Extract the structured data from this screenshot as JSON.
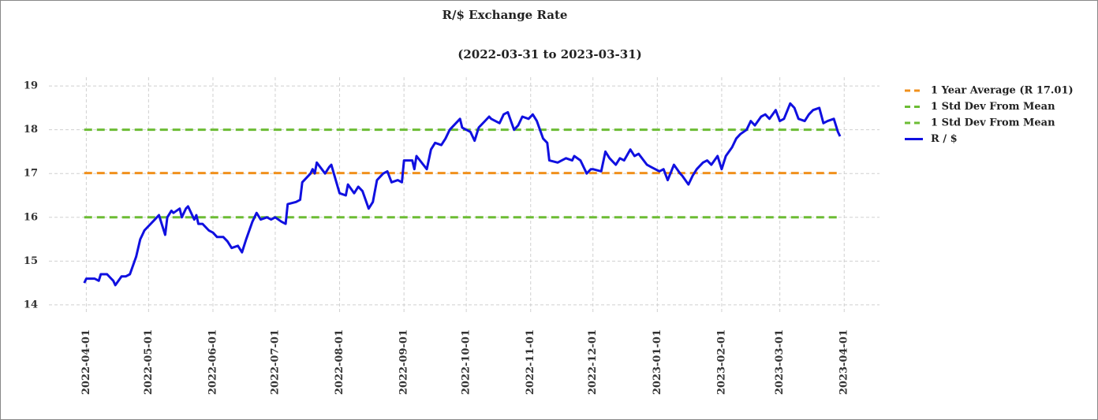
{
  "chart_data": {
    "type": "line",
    "title": "R/$  Exchange Rate",
    "subtitle": "(2022-03-31 to 2023-03-31)",
    "x": [
      "2022-03-31",
      "2022-04-01",
      "2022-04-05",
      "2022-04-07",
      "2022-04-08",
      "2022-04-11",
      "2022-04-13",
      "2022-04-14",
      "2022-04-15",
      "2022-04-18",
      "2022-04-20",
      "2022-04-22",
      "2022-04-25",
      "2022-04-26",
      "2022-04-27",
      "2022-04-28",
      "2022-04-29",
      "2022-05-02",
      "2022-05-04",
      "2022-05-06",
      "2022-05-09",
      "2022-05-10",
      "2022-05-12",
      "2022-05-13",
      "2022-05-16",
      "2022-05-17",
      "2022-05-19",
      "2022-05-20",
      "2022-05-23",
      "2022-05-24",
      "2022-05-25",
      "2022-05-27",
      "2022-05-30",
      "2022-06-01",
      "2022-06-03",
      "2022-06-06",
      "2022-06-08",
      "2022-06-10",
      "2022-06-13",
      "2022-06-15",
      "2022-06-17",
      "2022-06-20",
      "2022-06-22",
      "2022-06-24",
      "2022-06-27",
      "2022-06-29",
      "2022-07-01",
      "2022-07-04",
      "2022-07-06",
      "2022-07-07",
      "2022-07-11",
      "2022-07-13",
      "2022-07-14",
      "2022-07-18",
      "2022-07-19",
      "2022-07-20",
      "2022-07-21",
      "2022-07-25",
      "2022-07-27",
      "2022-07-28",
      "2022-08-01",
      "2022-08-04",
      "2022-08-05",
      "2022-08-08",
      "2022-08-10",
      "2022-08-12",
      "2022-08-15",
      "2022-08-17",
      "2022-08-19",
      "2022-08-22",
      "2022-08-24",
      "2022-08-26",
      "2022-08-29",
      "2022-08-31",
      "2022-09-01",
      "2022-09-05",
      "2022-09-06",
      "2022-09-07",
      "2022-09-12",
      "2022-09-14",
      "2022-09-16",
      "2022-09-19",
      "2022-09-21",
      "2022-09-23",
      "2022-09-26",
      "2022-09-28",
      "2022-09-29",
      "2022-10-03",
      "2022-10-05",
      "2022-10-07",
      "2022-10-10",
      "2022-10-12",
      "2022-10-13",
      "2022-10-17",
      "2022-10-19",
      "2022-10-21",
      "2022-10-24",
      "2022-10-26",
      "2022-10-28",
      "2022-10-31",
      "2022-11-02",
      "2022-11-04",
      "2022-11-07",
      "2022-11-09",
      "2022-11-10",
      "2022-11-14",
      "2022-11-16",
      "2022-11-18",
      "2022-11-21",
      "2022-11-22",
      "2022-11-25",
      "2022-11-28",
      "2022-11-30",
      "2022-12-01",
      "2022-12-05",
      "2022-12-07",
      "2022-12-09",
      "2022-12-12",
      "2022-12-14",
      "2022-12-16",
      "2022-12-19",
      "2022-12-21",
      "2022-12-23",
      "2022-12-27",
      "2022-12-29",
      "2023-01-02",
      "2023-01-04",
      "2023-01-06",
      "2023-01-09",
      "2023-01-12",
      "2023-01-13",
      "2023-01-16",
      "2023-01-18",
      "2023-01-20",
      "2023-01-23",
      "2023-01-25",
      "2023-01-27",
      "2023-01-30",
      "2023-02-01",
      "2023-02-03",
      "2023-02-06",
      "2023-02-08",
      "2023-02-10",
      "2023-02-13",
      "2023-02-15",
      "2023-02-17",
      "2023-02-20",
      "2023-02-22",
      "2023-02-24",
      "2023-02-27",
      "2023-03-01",
      "2023-03-03",
      "2023-03-06",
      "2023-03-08",
      "2023-03-10",
      "2023-03-13",
      "2023-03-15",
      "2023-03-17",
      "2023-03-20",
      "2023-03-22",
      "2023-03-24",
      "2023-03-27",
      "2023-03-29",
      "2023-03-30"
    ],
    "series": [
      {
        "name": "R / $",
        "color": "#1010e0",
        "values": [
          14.5,
          14.6,
          14.6,
          14.55,
          14.7,
          14.7,
          14.6,
          14.55,
          14.45,
          14.65,
          14.65,
          14.7,
          15.1,
          15.3,
          15.5,
          15.6,
          15.7,
          15.85,
          15.95,
          16.05,
          15.6,
          16.0,
          16.15,
          16.1,
          16.2,
          16.0,
          16.2,
          16.25,
          15.95,
          16.05,
          15.85,
          15.85,
          15.7,
          15.65,
          15.55,
          15.55,
          15.45,
          15.3,
          15.35,
          15.2,
          15.5,
          15.9,
          16.1,
          15.95,
          16.0,
          15.95,
          16.0,
          15.9,
          15.85,
          16.3,
          16.35,
          16.4,
          16.8,
          17.0,
          17.1,
          17.0,
          17.25,
          17.0,
          17.15,
          17.2,
          16.55,
          16.5,
          16.75,
          16.55,
          16.7,
          16.6,
          16.2,
          16.35,
          16.85,
          17.0,
          17.05,
          16.8,
          16.85,
          16.8,
          17.3,
          17.3,
          17.1,
          17.4,
          17.1,
          17.55,
          17.7,
          17.65,
          17.8,
          18.0,
          18.15,
          18.25,
          18.05,
          17.95,
          17.75,
          18.05,
          18.2,
          18.3,
          18.25,
          18.15,
          18.35,
          18.4,
          18.0,
          18.1,
          18.3,
          18.25,
          18.35,
          18.2,
          17.8,
          17.7,
          17.3,
          17.25,
          17.3,
          17.35,
          17.3,
          17.4,
          17.3,
          17.0,
          17.1,
          17.1,
          17.05,
          17.5,
          17.35,
          17.2,
          17.35,
          17.3,
          17.55,
          17.4,
          17.45,
          17.2,
          17.15,
          17.05,
          17.1,
          16.85,
          17.2,
          17.0,
          16.95,
          16.75,
          16.95,
          17.1,
          17.25,
          17.3,
          17.2,
          17.4,
          17.1,
          17.4,
          17.6,
          17.8,
          17.9,
          18.0,
          18.2,
          18.1,
          18.3,
          18.35,
          18.25,
          18.45,
          18.2,
          18.25,
          18.6,
          18.5,
          18.25,
          18.2,
          18.35,
          18.45,
          18.5,
          18.15,
          18.2,
          18.25,
          17.95,
          17.85
        ]
      }
    ],
    "reference_lines": [
      {
        "name": "1 Year Average (R 17.01)",
        "color": "#f0901c",
        "value": 17.01
      },
      {
        "name": "1 Std Dev From Mean",
        "color": "#6cbc34",
        "value": 18.0
      },
      {
        "name": "1 Std Dev From Mean",
        "color": "#6cbc34",
        "value": 16.0
      }
    ],
    "xlim": [
      "2022-03-14",
      "2023-04-18"
    ],
    "xticks": [
      "2022-04-01",
      "2022-05-01",
      "2022-06-01",
      "2022-07-01",
      "2022-08-01",
      "2022-09-01",
      "2022-10-01",
      "2022-11-01",
      "2022-12-01",
      "2023-01-01",
      "2023-02-01",
      "2023-03-01",
      "2023-04-01"
    ],
    "ylim": [
      13.8,
      19.2
    ],
    "yticks": [
      14,
      15,
      16,
      17,
      18,
      19
    ],
    "grid": true,
    "legend": "upper right"
  }
}
